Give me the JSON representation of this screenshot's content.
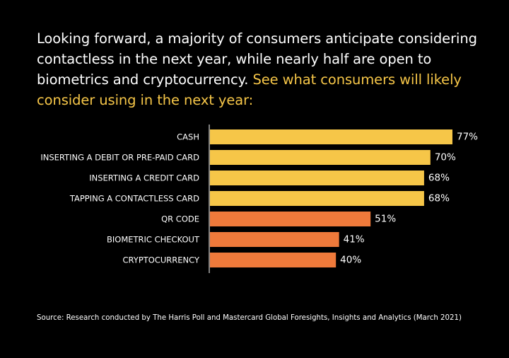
{
  "headline": {
    "main": "Looking forward, a majority of consumers anticipate considering contactless in the next year, while nearly half are open to biometrics and cryptocurrency.",
    "accent": "See what consumers will likely consider using in the next year:"
  },
  "colors": {
    "background": "#000000",
    "bar_high": "#f6c648",
    "bar_low": "#ef7a3b",
    "accent_text": "#f6c648"
  },
  "chart_data": {
    "type": "bar",
    "orientation": "horizontal",
    "categories": [
      "CASH",
      "INSERTING A DEBIT OR PRE-PAID CARD",
      "INSERTING A CREDIT CARD",
      "TAPPING A CONTACTLESS CARD",
      "QR CODE",
      "BIOMETRIC CHECKOUT",
      "CRYPTOCURRENCY"
    ],
    "values": [
      77,
      70,
      68,
      68,
      51,
      41,
      40
    ],
    "value_labels": [
      "77%",
      "70%",
      "68%",
      "68%",
      "51%",
      "41%",
      "40%"
    ],
    "bar_color_groups": [
      "high",
      "high",
      "high",
      "high",
      "low",
      "low",
      "low"
    ],
    "unit": "%",
    "xlim": [
      0,
      100
    ],
    "grid": false,
    "legend": "none"
  },
  "source": "Source: Research conducted by The Harris Poll and Mastercard Global Foresights, Insights and Analytics (March 2021)"
}
